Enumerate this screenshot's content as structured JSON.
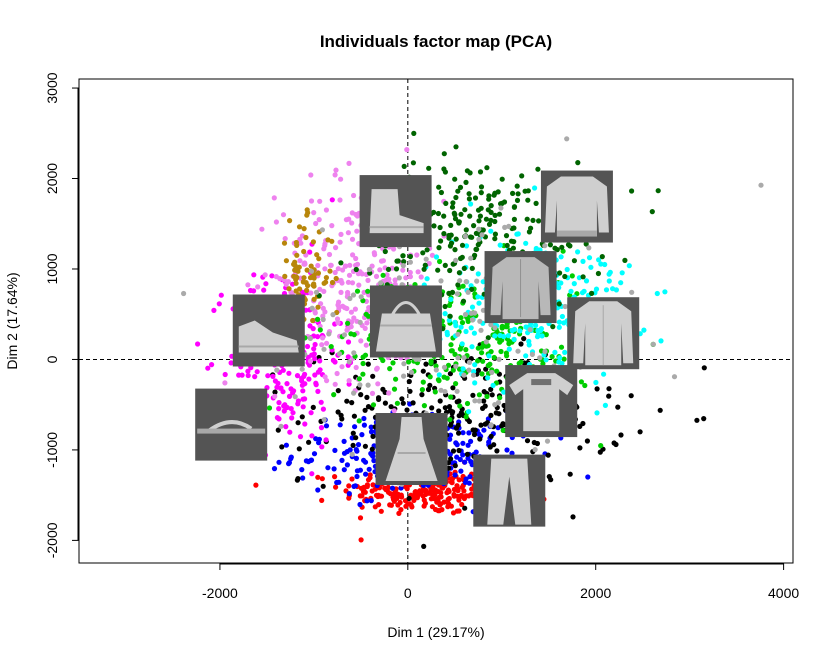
{
  "chart_data": {
    "type": "scatter",
    "title": "Individuals factor map (PCA)",
    "xlabel": "Dim 1 (29.17%)",
    "ylabel": "Dim 2 (17.64%)",
    "xlim": [
      -3500,
      4100
    ],
    "ylim": [
      -2250,
      3100
    ],
    "x_ticks": [
      -2000,
      0,
      2000,
      4000
    ],
    "x_tick_labels": [
      "-2000",
      "0",
      "2000",
      "4000"
    ],
    "y_ticks": [
      -2000,
      -1000,
      0,
      1000,
      2000,
      3000
    ],
    "y_tick_labels": [
      "-2000",
      "-1000",
      "0",
      "1000",
      "2000",
      "3000"
    ],
    "reference_lines": {
      "x": 0,
      "y": 0,
      "style": "dashed"
    },
    "grid": false,
    "legend": "none",
    "clusters": [
      {
        "color": "#ff0000",
        "cx": 200,
        "cy": -1450,
        "sx": 450,
        "sy": 130,
        "n": 260
      },
      {
        "color": "#0000ff",
        "cx": 100,
        "cy": -1050,
        "sx": 650,
        "sy": 220,
        "n": 240
      },
      {
        "color": "#000000",
        "cx": 600,
        "cy": -600,
        "sx": 850,
        "sy": 380,
        "n": 280
      },
      {
        "color": "#ff00ff",
        "cx": -1300,
        "cy": 50,
        "sx": 300,
        "sy": 500,
        "n": 220
      },
      {
        "color": "#ee82ee",
        "cx": -500,
        "cy": 900,
        "sx": 450,
        "sy": 550,
        "n": 300
      },
      {
        "color": "#b8860b",
        "cx": -1100,
        "cy": 900,
        "sx": 150,
        "sy": 300,
        "n": 80
      },
      {
        "color": "#00cd00",
        "cx": 600,
        "cy": 200,
        "sx": 700,
        "sy": 400,
        "n": 280
      },
      {
        "color": "#00ffff",
        "cx": 1300,
        "cy": 600,
        "sx": 550,
        "sy": 450,
        "n": 260
      },
      {
        "color": "#006400",
        "cx": 800,
        "cy": 1400,
        "sx": 650,
        "sy": 400,
        "n": 260
      },
      {
        "color": "#aaaaaa",
        "cx": 500,
        "cy": 400,
        "sx": 900,
        "sy": 700,
        "n": 150
      }
    ],
    "image_thumbnails": [
      {
        "item": "ankle-boot",
        "x": -130,
        "y": 1640
      },
      {
        "item": "sweater",
        "x": 1800,
        "y": 1690
      },
      {
        "item": "shirt",
        "x": 1200,
        "y": 800
      },
      {
        "item": "bag",
        "x": -20,
        "y": 420
      },
      {
        "item": "sneaker",
        "x": -1480,
        "y": 320
      },
      {
        "item": "coat",
        "x": 2080,
        "y": 290
      },
      {
        "item": "t-shirt",
        "x": 1420,
        "y": -460
      },
      {
        "item": "sandal",
        "x": -1880,
        "y": -720
      },
      {
        "item": "dress",
        "x": 40,
        "y": -990
      },
      {
        "item": "trouser",
        "x": 1080,
        "y": -1450
      }
    ]
  }
}
